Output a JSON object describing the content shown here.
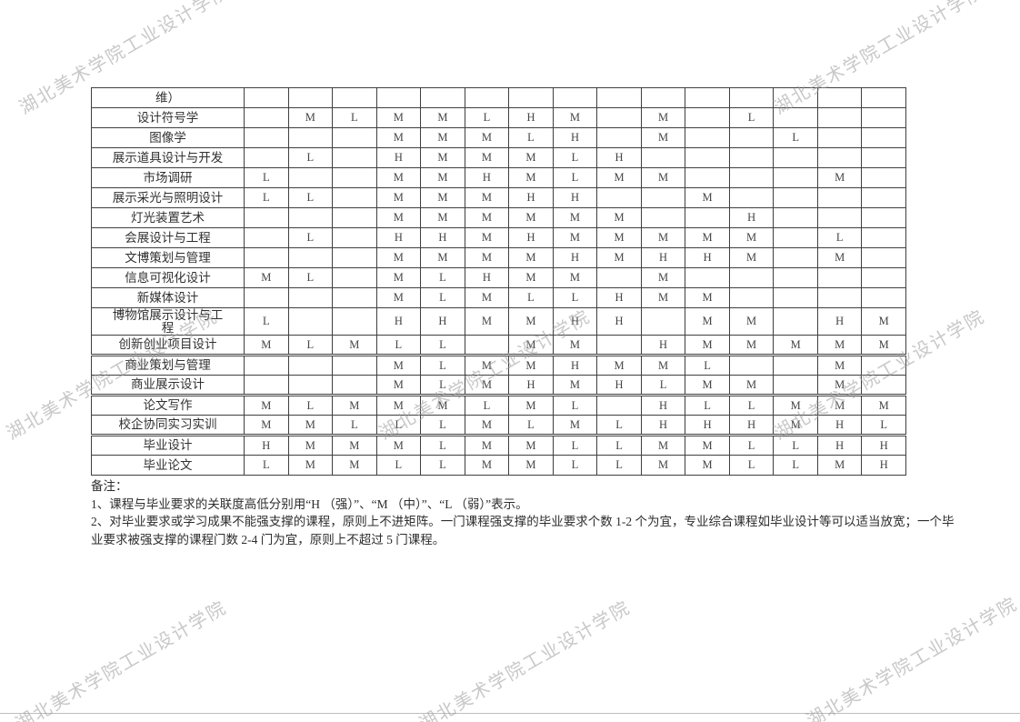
{
  "watermark": {
    "text": "湖北美术学院工业设计学院",
    "color": "#9c9c9c"
  },
  "table": {
    "value_legend": [
      "H",
      "M",
      "L"
    ],
    "data_columns": 15,
    "rows": [
      {
        "name": "维）",
        "values": [
          "",
          "",
          "",
          "",
          "",
          "",
          "",
          "",
          "",
          "",
          "",
          "",
          "",
          "",
          ""
        ]
      },
      {
        "name": "设计符号学",
        "values": [
          "",
          "M",
          "L",
          "M",
          "M",
          "L",
          "H",
          "M",
          "",
          "M",
          "",
          "L",
          "",
          "",
          ""
        ]
      },
      {
        "name": "图像学",
        "values": [
          "",
          "",
          "",
          "M",
          "M",
          "M",
          "L",
          "H",
          "",
          "M",
          "",
          "",
          "L",
          "",
          ""
        ]
      },
      {
        "name": "展示道具设计与开发",
        "values": [
          "",
          "L",
          "",
          "H",
          "M",
          "M",
          "M",
          "L",
          "H",
          "",
          "",
          "",
          "",
          "",
          ""
        ]
      },
      {
        "name": "市场调研",
        "values": [
          "L",
          "",
          "",
          "M",
          "M",
          "H",
          "M",
          "L",
          "M",
          "M",
          "",
          "",
          "",
          "M",
          ""
        ]
      },
      {
        "name": "展示采光与照明设计",
        "values": [
          "L",
          "L",
          "",
          "M",
          "M",
          "M",
          "H",
          "H",
          "",
          "",
          "M",
          "",
          "",
          "",
          ""
        ]
      },
      {
        "name": "灯光装置艺术",
        "values": [
          "",
          "",
          "",
          "M",
          "M",
          "M",
          "M",
          "M",
          "M",
          "",
          "",
          "H",
          "",
          "",
          ""
        ]
      },
      {
        "name": "会展设计与工程",
        "values": [
          "",
          "L",
          "",
          "H",
          "H",
          "M",
          "H",
          "M",
          "M",
          "M",
          "M",
          "M",
          "",
          "L",
          ""
        ]
      },
      {
        "name": "文博策划与管理",
        "values": [
          "",
          "",
          "",
          "M",
          "M",
          "M",
          "M",
          "H",
          "M",
          "H",
          "H",
          "M",
          "",
          "M",
          ""
        ]
      },
      {
        "name": "信息可视化设计",
        "values": [
          "M",
          "L",
          "",
          "M",
          "L",
          "H",
          "M",
          "M",
          "",
          "M",
          "",
          "",
          "",
          "",
          ""
        ]
      },
      {
        "name": "新媒体设计",
        "values": [
          "",
          "",
          "",
          "M",
          "L",
          "M",
          "L",
          "L",
          "H",
          "M",
          "M",
          "",
          "",
          "",
          ""
        ]
      },
      {
        "name": "博物馆展示设计与工程",
        "wrap": true,
        "values": [
          "L",
          "",
          "",
          "H",
          "H",
          "M",
          "M",
          "H",
          "H",
          "",
          "M",
          "M",
          "",
          "H",
          "M"
        ]
      },
      {
        "name": "创新创业项目设计",
        "values": [
          "M",
          "L",
          "M",
          "L",
          "L",
          "",
          "M",
          "M",
          "",
          "H",
          "M",
          "M",
          "M",
          "M",
          "M"
        ]
      },
      {
        "name": "商业策划与管理",
        "thick_top": true,
        "values": [
          "",
          "",
          "",
          "M",
          "L",
          "M",
          "M",
          "H",
          "M",
          "M",
          "L",
          "",
          "",
          "M",
          ""
        ]
      },
      {
        "name": "商业展示设计",
        "values": [
          "",
          "",
          "",
          "M",
          "L",
          "M",
          "H",
          "M",
          "H",
          "L",
          "M",
          "M",
          "",
          "M",
          ""
        ]
      },
      {
        "name": "论文写作",
        "thick_top": true,
        "values": [
          "M",
          "L",
          "M",
          "M",
          "M",
          "L",
          "M",
          "L",
          "",
          "H",
          "L",
          "L",
          "M",
          "M",
          "M"
        ]
      },
      {
        "name": "校企协同实习实训",
        "values": [
          "M",
          "M",
          "L",
          "L",
          "L",
          "M",
          "L",
          "M",
          "L",
          "H",
          "H",
          "H",
          "M",
          "H",
          "L"
        ]
      },
      {
        "name": "毕业设计",
        "thick_top": true,
        "values": [
          "H",
          "M",
          "M",
          "M",
          "L",
          "M",
          "M",
          "L",
          "L",
          "M",
          "M",
          "L",
          "L",
          "H",
          "H"
        ]
      },
      {
        "name": "毕业论文",
        "values": [
          "L",
          "M",
          "M",
          "L",
          "L",
          "M",
          "M",
          "L",
          "L",
          "M",
          "M",
          "L",
          "L",
          "M",
          "H"
        ]
      }
    ]
  },
  "notes": {
    "title": "备注：",
    "line1": "1、课程与毕业要求的关联度高低分别用“H （强）”、“M （中）”、“L （弱）”表示。",
    "line2": "2、对毕业要求或学习成果不能强支撑的课程，原则上不进矩阵。一门课程强支撑的毕业要求个数 1-2 个为宜，专业综合课程如毕业设计等可以适当放宽；一个毕业要求被强支撑的课程门数 2-4 门为宜，原则上不超过 5 门课程。"
  }
}
